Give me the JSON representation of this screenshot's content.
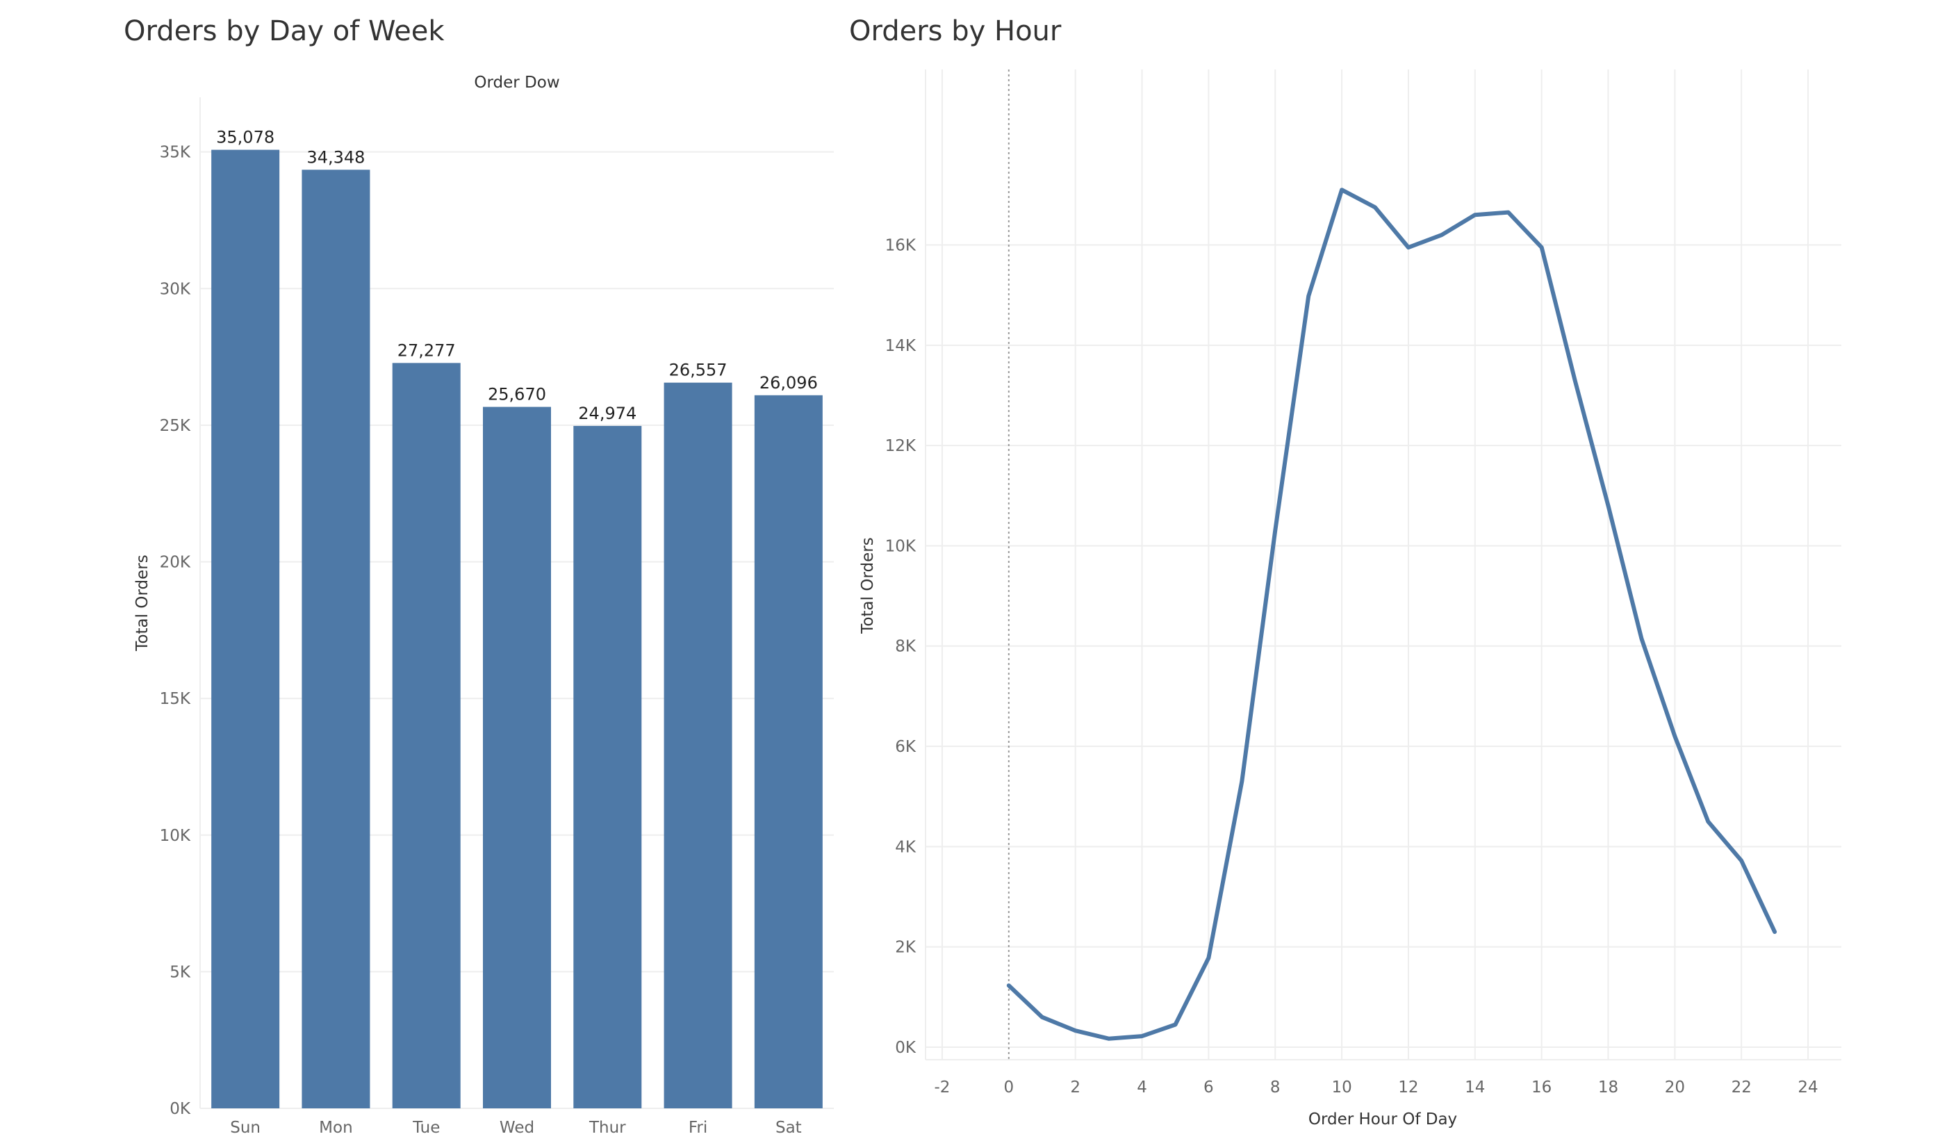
{
  "chart_data": [
    {
      "type": "bar",
      "title": "Orders by Day of Week",
      "top_axis_label": "Order Dow",
      "ylabel": "Total Orders",
      "xlabel": "",
      "categories": [
        "Sun",
        "Mon",
        "Tue",
        "Wed",
        "Thur",
        "Fri",
        "Sat"
      ],
      "values": [
        35078,
        34348,
        27277,
        25670,
        24974,
        26557,
        26096
      ],
      "value_labels": [
        "35,078",
        "34,348",
        "27,277",
        "25,670",
        "24,974",
        "26,557",
        "26,096"
      ],
      "ylim": [
        0,
        37000
      ],
      "y_ticks": [
        0,
        5000,
        10000,
        15000,
        20000,
        25000,
        30000,
        35000
      ],
      "y_tick_labels": [
        "0K",
        "5K",
        "10K",
        "15K",
        "20K",
        "25K",
        "30K",
        "35K"
      ],
      "grid": true,
      "bar_color": "#4e79a7"
    },
    {
      "type": "line",
      "title": "Orders by Hour",
      "xlabel": "Order Hour Of Day",
      "ylabel": "Total Orders",
      "x": [
        0,
        1,
        2,
        3,
        4,
        5,
        6,
        7,
        8,
        9,
        10,
        11,
        12,
        13,
        14,
        15,
        16,
        17,
        18,
        19,
        20,
        21,
        22,
        23
      ],
      "values": [
        1230,
        600,
        330,
        170,
        220,
        450,
        1780,
        5300,
        10300,
        14980,
        17100,
        16750,
        15950,
        16200,
        16600,
        16650,
        15950,
        13300,
        10800,
        8150,
        6200,
        4500,
        3720,
        2300
      ],
      "xlim": [
        -2.5,
        25
      ],
      "ylim": [
        -250,
        19500
      ],
      "x_ticks": [
        -2,
        0,
        2,
        4,
        6,
        8,
        10,
        12,
        14,
        16,
        18,
        20,
        22,
        24
      ],
      "x_tick_labels": [
        "-2",
        "0",
        "2",
        "4",
        "6",
        "8",
        "10",
        "12",
        "14",
        "16",
        "18",
        "20",
        "22",
        "24"
      ],
      "y_ticks": [
        0,
        2000,
        4000,
        6000,
        8000,
        10000,
        12000,
        14000,
        16000
      ],
      "y_tick_labels": [
        "0K",
        "2K",
        "4K",
        "6K",
        "8K",
        "10K",
        "12K",
        "14K",
        "16K"
      ],
      "grid": true,
      "line_color": "#4e79a7"
    }
  ]
}
